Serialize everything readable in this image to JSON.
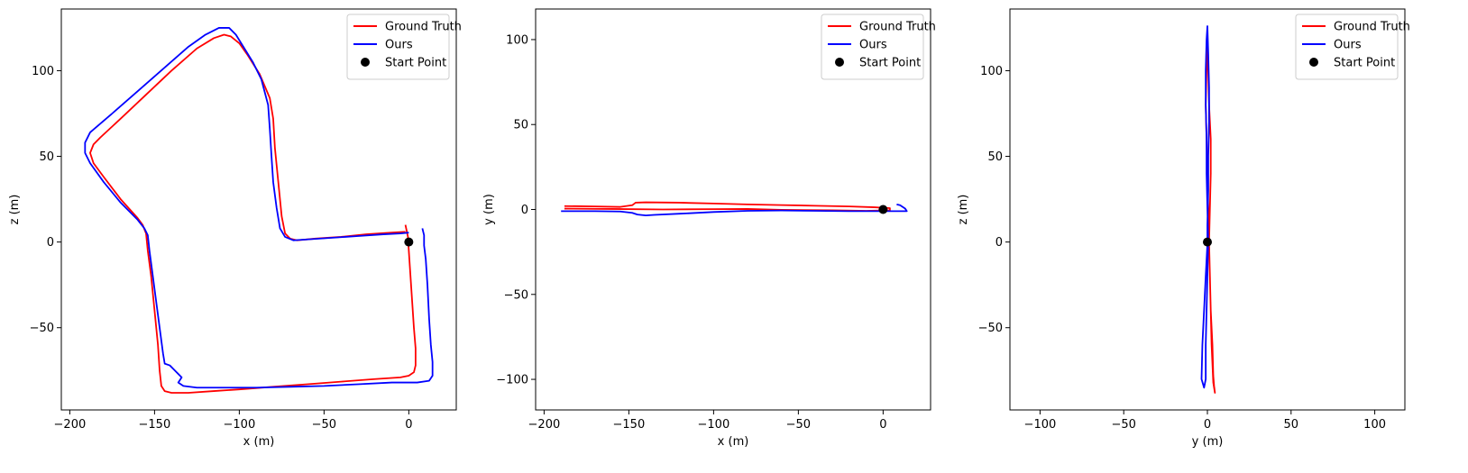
{
  "chart_data": [
    {
      "type": "line",
      "xlabel": "x (m)",
      "ylabel": "z (m)",
      "xlim": [
        -205,
        28
      ],
      "ylim": [
        -98,
        136
      ],
      "xticks": [
        -200,
        -150,
        -100,
        -50,
        0
      ],
      "yticks": [
        -50,
        0,
        50,
        100
      ],
      "grid": false,
      "legend_position": "top-right",
      "legend": [
        "Ground Truth",
        "Ours",
        "Start Point"
      ],
      "series": [
        {
          "name": "Ground Truth",
          "color": "#ff0000",
          "points": [
            [
              -2,
              10
            ],
            [
              -0.5,
              3
            ],
            [
              0,
              -5
            ],
            [
              1,
              -20
            ],
            [
              2,
              -35
            ],
            [
              3,
              -50
            ],
            [
              4,
              -62
            ],
            [
              4,
              -72
            ],
            [
              3,
              -76
            ],
            [
              0,
              -78
            ],
            [
              -5,
              -79
            ],
            [
              -20,
              -80
            ],
            [
              -40,
              -81.5
            ],
            [
              -60,
              -83
            ],
            [
              -80,
              -84.5
            ],
            [
              -100,
              -86
            ],
            [
              -115,
              -87
            ],
            [
              -130,
              -88
            ],
            [
              -140,
              -88
            ],
            [
              -144,
              -87
            ],
            [
              -146,
              -84
            ],
            [
              -147,
              -75
            ],
            [
              -148,
              -60
            ],
            [
              -150,
              -40
            ],
            [
              -152,
              -20
            ],
            [
              -154,
              -5
            ],
            [
              -155,
              5
            ],
            [
              -157,
              10
            ],
            [
              -160,
              14
            ],
            [
              -170,
              25
            ],
            [
              -180,
              38
            ],
            [
              -186,
              46
            ],
            [
              -188,
              52
            ],
            [
              -186,
              57
            ],
            [
              -182,
              61
            ],
            [
              -170,
              72
            ],
            [
              -155,
              86
            ],
            [
              -140,
              100
            ],
            [
              -125,
              113
            ],
            [
              -115,
              119
            ],
            [
              -109,
              121
            ],
            [
              -105,
              120
            ],
            [
              -100,
              116
            ],
            [
              -95,
              109
            ],
            [
              -88,
              98
            ],
            [
              -82,
              84
            ],
            [
              -80,
              72
            ],
            [
              -79,
              55
            ],
            [
              -77,
              35
            ],
            [
              -75,
              15
            ],
            [
              -73,
              5
            ],
            [
              -70,
              2
            ],
            [
              -66,
              1
            ],
            [
              -55,
              2
            ],
            [
              -40,
              3
            ],
            [
              -25,
              4.5
            ],
            [
              -10,
              5.5
            ],
            [
              -2,
              6
            ]
          ]
        },
        {
          "name": "Ours",
          "color": "#0000ff",
          "points": [
            [
              8,
              8
            ],
            [
              9,
              4
            ],
            [
              9,
              -2
            ],
            [
              10,
              -10
            ],
            [
              11,
              -25
            ],
            [
              12,
              -45
            ],
            [
              13,
              -60
            ],
            [
              14,
              -70
            ],
            [
              14,
              -78
            ],
            [
              12,
              -81
            ],
            [
              5,
              -82
            ],
            [
              -10,
              -82
            ],
            [
              -30,
              -83
            ],
            [
              -50,
              -84
            ],
            [
              -70,
              -84.5
            ],
            [
              -90,
              -85
            ],
            [
              -110,
              -85
            ],
            [
              -125,
              -85
            ],
            [
              -133,
              -84
            ],
            [
              -136,
              -82
            ],
            [
              -134,
              -79
            ],
            [
              -136,
              -77
            ],
            [
              -138,
              -75
            ],
            [
              -141,
              -72
            ],
            [
              -144,
              -71
            ],
            [
              -145,
              -65
            ],
            [
              -147,
              -50
            ],
            [
              -149,
              -35
            ],
            [
              -151,
              -20
            ],
            [
              -153,
              -5
            ],
            [
              -154,
              4
            ],
            [
              -156,
              8
            ],
            [
              -160,
              13
            ],
            [
              -170,
              23
            ],
            [
              -180,
              35
            ],
            [
              -188,
              46
            ],
            [
              -191,
              52
            ],
            [
              -191,
              58
            ],
            [
              -188,
              64
            ],
            [
              -175,
              75
            ],
            [
              -160,
              88
            ],
            [
              -145,
              101
            ],
            [
              -130,
              114
            ],
            [
              -120,
              121
            ],
            [
              -112,
              125
            ],
            [
              -106,
              125
            ],
            [
              -102,
              121
            ],
            [
              -97,
              113
            ],
            [
              -92,
              105
            ],
            [
              -87,
              95
            ],
            [
              -83,
              80
            ],
            [
              -82,
              66
            ],
            [
              -81,
              50
            ],
            [
              -80,
              35
            ],
            [
              -78,
              20
            ],
            [
              -76,
              8
            ],
            [
              -73,
              3
            ],
            [
              -68,
              1
            ],
            [
              -60,
              1.5
            ],
            [
              -45,
              2.5
            ],
            [
              -30,
              3.5
            ],
            [
              -15,
              4.5
            ],
            [
              -5,
              5
            ],
            [
              0,
              5.5
            ]
          ]
        },
        {
          "name": "Start Point",
          "color": "#000000",
          "marker": "circle",
          "points": [
            [
              0,
              0
            ]
          ]
        }
      ]
    },
    {
      "type": "line",
      "xlabel": "x (m)",
      "ylabel": "y (m)",
      "xlim": [
        -205,
        28
      ],
      "ylim": [
        -118,
        118
      ],
      "xticks": [
        -200,
        -150,
        -100,
        -50,
        0
      ],
      "yticks": [
        -100,
        -50,
        0,
        50,
        100
      ],
      "grid": false,
      "legend_position": "top-right",
      "legend": [
        "Ground Truth",
        "Ours",
        "Start Point"
      ],
      "series": [
        {
          "name": "Ground Truth",
          "color": "#ff0000",
          "points": [
            [
              -188,
              2
            ],
            [
              -170,
              1.8
            ],
            [
              -155,
              1.5
            ],
            [
              -148,
              2.5
            ],
            [
              -146,
              4
            ],
            [
              -140,
              4.2
            ],
            [
              -120,
              4
            ],
            [
              -100,
              3.5
            ],
            [
              -80,
              3
            ],
            [
              -60,
              2.6
            ],
            [
              -40,
              2.2
            ],
            [
              -20,
              1.8
            ],
            [
              -5,
              1.3
            ],
            [
              0,
              1
            ],
            [
              4,
              0.8
            ],
            [
              4,
              -0.5
            ],
            [
              -10,
              -0.8
            ],
            [
              -30,
              -0.5
            ],
            [
              -60,
              -0.2
            ],
            [
              -80,
              0.3
            ],
            [
              -100,
              0.2
            ],
            [
              -130,
              0
            ],
            [
              -160,
              0.3
            ],
            [
              -188,
              0.5
            ]
          ]
        },
        {
          "name": "Ours",
          "color": "#0000ff",
          "points": [
            [
              -190,
              -1
            ],
            [
              -170,
              -1
            ],
            [
              -155,
              -1.2
            ],
            [
              -148,
              -2
            ],
            [
              -145,
              -3
            ],
            [
              -140,
              -3.5
            ],
            [
              -135,
              -3.2
            ],
            [
              -120,
              -2.5
            ],
            [
              -100,
              -1.5
            ],
            [
              -80,
              -0.8
            ],
            [
              -60,
              -0.6
            ],
            [
              -40,
              -0.8
            ],
            [
              -20,
              -1
            ],
            [
              0,
              -1
            ],
            [
              10,
              -1
            ],
            [
              14,
              -1
            ],
            [
              13,
              0.5
            ],
            [
              10,
              2.5
            ],
            [
              8,
              3
            ]
          ]
        },
        {
          "name": "Start Point",
          "color": "#000000",
          "marker": "circle",
          "points": [
            [
              0,
              0
            ]
          ]
        }
      ]
    },
    {
      "type": "line",
      "xlabel": "y (m)",
      "ylabel": "z (m)",
      "xlim": [
        -118,
        118
      ],
      "ylim": [
        -98,
        136
      ],
      "xticks": [
        -100,
        -50,
        0,
        50,
        100
      ],
      "yticks": [
        -50,
        0,
        50,
        100
      ],
      "grid": false,
      "legend_position": "top-right",
      "legend": [
        "Ground Truth",
        "Ours",
        "Start Point"
      ],
      "series": [
        {
          "name": "Ground Truth",
          "color": "#ff0000",
          "points": [
            [
              1,
              10
            ],
            [
              1,
              0
            ],
            [
              1.5,
              -20
            ],
            [
              2,
              -40
            ],
            [
              3,
              -60
            ],
            [
              3.5,
              -78
            ],
            [
              4,
              -84
            ],
            [
              4.5,
              -88
            ],
            [
              3.5,
              -82
            ],
            [
              2.5,
              -60
            ],
            [
              2,
              -40
            ],
            [
              1.5,
              -20
            ],
            [
              1,
              0
            ],
            [
              1.5,
              20
            ],
            [
              2,
              40
            ],
            [
              2,
              60
            ],
            [
              1,
              80
            ],
            [
              0.5,
              100
            ],
            [
              0,
              119
            ],
            [
              -0.5,
              100
            ],
            [
              -1,
              80
            ],
            [
              -0.5,
              60
            ],
            [
              0,
              40
            ],
            [
              0.5,
              20
            ],
            [
              1,
              5
            ]
          ]
        },
        {
          "name": "Ours",
          "color": "#0000ff",
          "points": [
            [
              0,
              -1
            ],
            [
              -1,
              -20
            ],
            [
              -2,
              -40
            ],
            [
              -3,
              -60
            ],
            [
              -3.5,
              -80
            ],
            [
              -2,
              -85
            ],
            [
              -1,
              -80
            ],
            [
              -1,
              -60
            ],
            [
              -0.5,
              -40
            ],
            [
              0,
              -20
            ],
            [
              0.5,
              0
            ],
            [
              0,
              20
            ],
            [
              -0.5,
              40
            ],
            [
              -0.5,
              60
            ],
            [
              -1,
              80
            ],
            [
              -1,
              100
            ],
            [
              -0.5,
              118
            ],
            [
              0,
              126
            ],
            [
              0.5,
              110
            ],
            [
              1,
              90
            ],
            [
              1,
              70
            ],
            [
              0.5,
              50
            ],
            [
              0.5,
              30
            ],
            [
              0,
              10
            ],
            [
              0,
              -1
            ]
          ]
        },
        {
          "name": "Start Point",
          "color": "#000000",
          "marker": "circle",
          "points": [
            [
              0,
              0
            ]
          ]
        }
      ]
    }
  ]
}
